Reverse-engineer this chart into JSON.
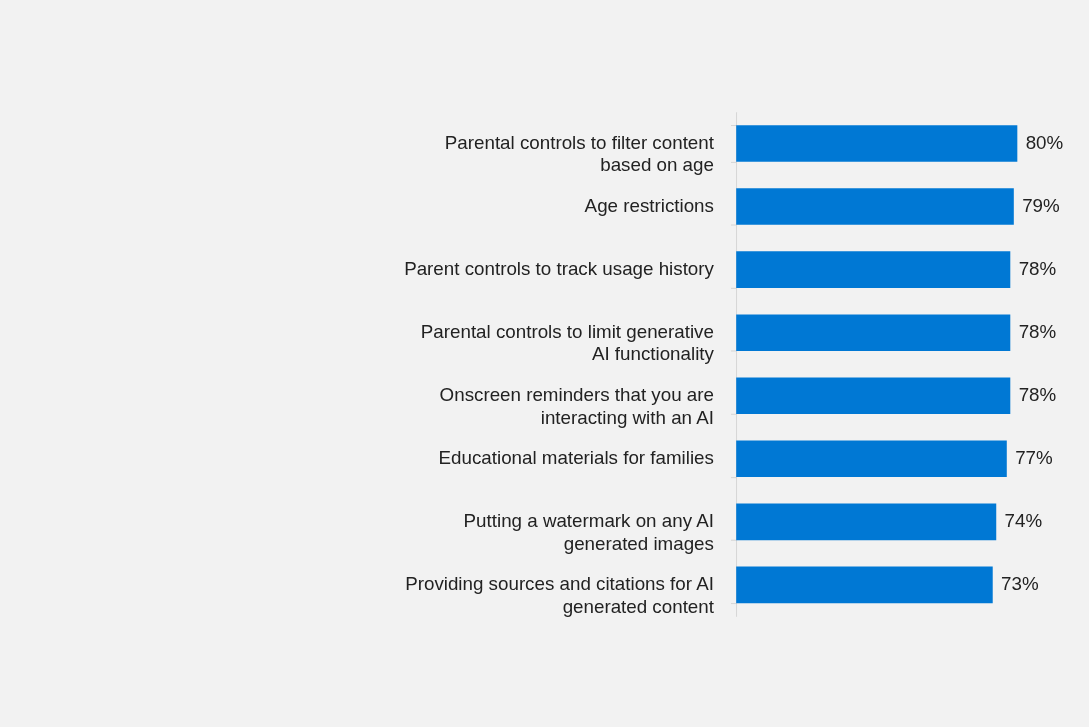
{
  "chart_data": {
    "type": "bar",
    "orientation": "horizontal",
    "categories": [
      "Parental controls to filter content\nbased on age",
      "Age restrictions",
      "Parent controls to track usage history",
      "Parental controls to limit generative\nAI functionality",
      "Onscreen reminders that you are\ninteracting with an AI",
      "Educational materials for families",
      "Putting a watermark on any AI\ngenerated images",
      "Providing sources and citations for AI\ngenerated content"
    ],
    "values": [
      80,
      79,
      78,
      78,
      78,
      77,
      74,
      73
    ],
    "value_labels": [
      "80%",
      "79%",
      "78%",
      "78%",
      "78%",
      "77%",
      "74%",
      "73%"
    ],
    "color": "#0078d4",
    "xlim": [
      0,
      100
    ]
  }
}
